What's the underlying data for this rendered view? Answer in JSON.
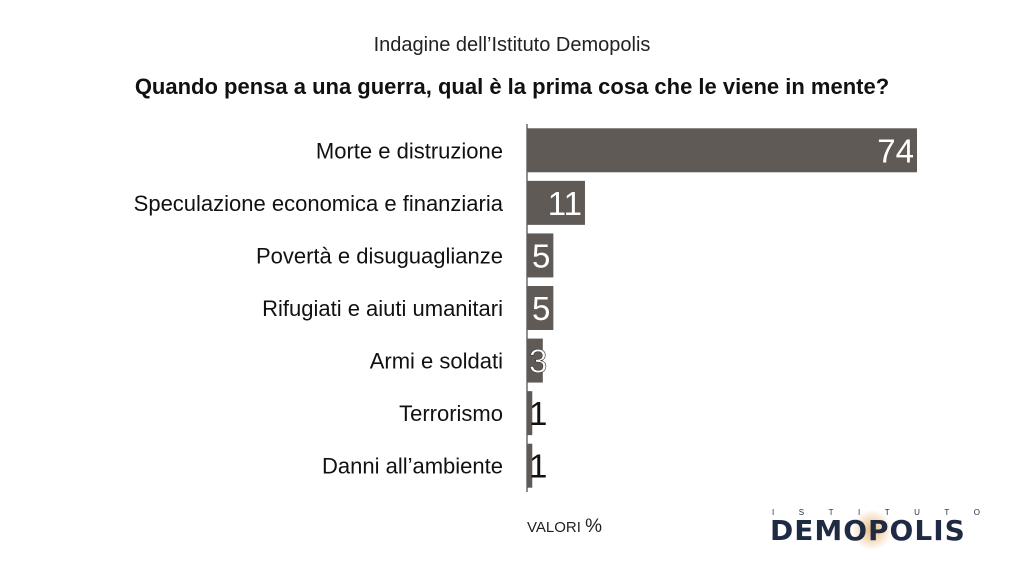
{
  "header": {
    "subtitle": "Indagine dell’Istituto Demopolis",
    "title": "Quando pensa a una guerra, qual è la prima cosa che le viene in mente?"
  },
  "chart_data": {
    "type": "bar",
    "orientation": "horizontal",
    "categories": [
      "Morte e distruzione",
      "Speculazione economica e finanziaria",
      "Povertà e disuguaglianze",
      "Rifugiati e aiuti umanitari",
      "Armi e soldati",
      "Terrorismo",
      "Danni all’ambiente"
    ],
    "values": [
      74,
      11,
      5,
      5,
      3,
      1,
      1
    ],
    "units_label": "VALORI",
    "units_symbol": "%",
    "bar_color": "#5f5a56",
    "xlim": [
      0,
      100
    ]
  },
  "logo": {
    "top_text": "ISTITUTO",
    "main_text": "DEMOPOLIS",
    "color": "#1f2a44"
  }
}
